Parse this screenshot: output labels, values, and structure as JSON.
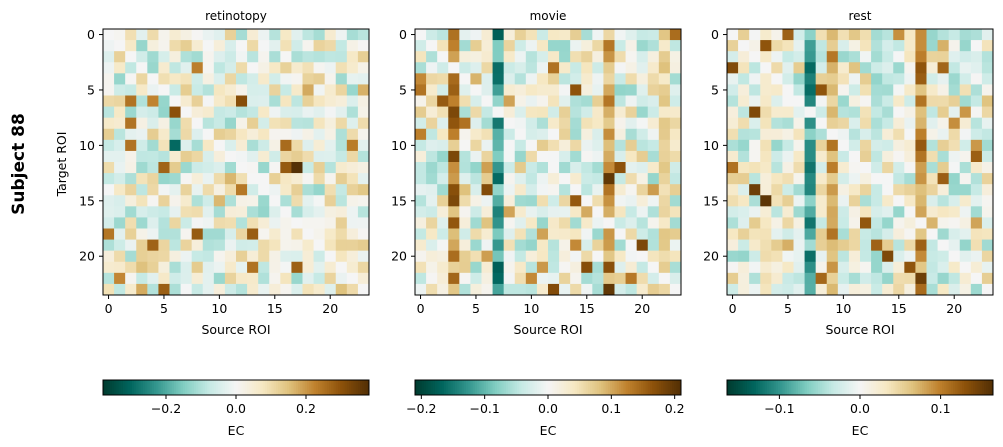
{
  "figure": {
    "suptitle": "Subject 88",
    "ylabel": "Target ROI",
    "xlabel": "Source ROI",
    "colorbar_label": "EC"
  },
  "chart_data": [
    {
      "type": "heatmap",
      "title": "retinotopy",
      "xlabel": "Source ROI",
      "ylabel": "Target ROI",
      "size": 24,
      "x_ticks": [
        0,
        5,
        10,
        15,
        20
      ],
      "y_ticks": [
        0,
        5,
        10,
        15,
        20
      ],
      "vmin": -0.38,
      "vmax": 0.38,
      "colorbar_ticks": [
        -0.2,
        0.0,
        0.2
      ],
      "colorbar_tick_labels": [
        "−0.2",
        "0.0",
        "0.2"
      ],
      "colormap": "BrBG_r",
      "strong_columns": [],
      "notable_cells": [
        [
          12,
          17,
          0.38
        ],
        [
          8,
          2,
          0.25
        ],
        [
          10,
          2,
          0.25
        ],
        [
          6,
          2,
          0.25
        ],
        [
          21,
          17,
          0.28
        ],
        [
          10,
          6,
          -0.3
        ]
      ]
    },
    {
      "type": "heatmap",
      "title": "movie",
      "xlabel": "Source ROI",
      "ylabel": "",
      "size": 24,
      "x_ticks": [
        0,
        5,
        10,
        15,
        20
      ],
      "y_ticks": [
        0,
        5,
        10,
        15,
        20
      ],
      "vmin": -0.21,
      "vmax": 0.21,
      "colorbar_ticks": [
        -0.2,
        -0.1,
        0.0,
        0.1,
        0.2
      ],
      "colorbar_tick_labels": [
        "−0.2",
        "−0.1",
        "0.0",
        "0.1",
        "0.2"
      ],
      "colormap": "BrBG_r",
      "strong_columns": [
        [
          7,
          -0.12
        ],
        [
          3,
          0.12
        ],
        [
          17,
          0.1
        ],
        [
          22,
          0.06
        ]
      ],
      "notable_cells": [
        [
          13,
          17,
          0.2
        ],
        [
          23,
          17,
          0.2
        ],
        [
          7,
          3,
          0.18
        ],
        [
          11,
          3,
          0.18
        ],
        [
          15,
          3,
          0.18
        ],
        [
          6,
          2,
          0.16
        ],
        [
          19,
          20,
          0.18
        ],
        [
          21,
          17,
          0.17
        ]
      ]
    },
    {
      "type": "heatmap",
      "title": "rest",
      "xlabel": "Source ROI",
      "ylabel": "",
      "size": 24,
      "x_ticks": [
        0,
        5,
        10,
        15,
        20
      ],
      "y_ticks": [
        0,
        5,
        10,
        15,
        20
      ],
      "vmin": -0.165,
      "vmax": 0.165,
      "colorbar_ticks": [
        -0.1,
        0.0,
        0.1
      ],
      "colorbar_tick_labels": [
        "−0.1",
        "0.0",
        "0.1"
      ],
      "colormap": "BrBG_r",
      "strong_columns": [
        [
          7,
          -0.09
        ],
        [
          9,
          0.08
        ],
        [
          17,
          0.09
        ],
        [
          13,
          -0.04
        ],
        [
          3,
          0.03
        ]
      ],
      "notable_cells": [
        [
          15,
          3,
          0.16
        ],
        [
          14,
          2,
          0.15
        ],
        [
          7,
          2,
          0.14
        ],
        [
          1,
          3,
          0.13
        ],
        [
          3,
          17,
          0.13
        ],
        [
          20,
          14,
          0.14
        ],
        [
          22,
          17,
          0.15
        ],
        [
          21,
          16,
          0.13
        ],
        [
          19,
          13,
          0.12
        ]
      ]
    }
  ]
}
